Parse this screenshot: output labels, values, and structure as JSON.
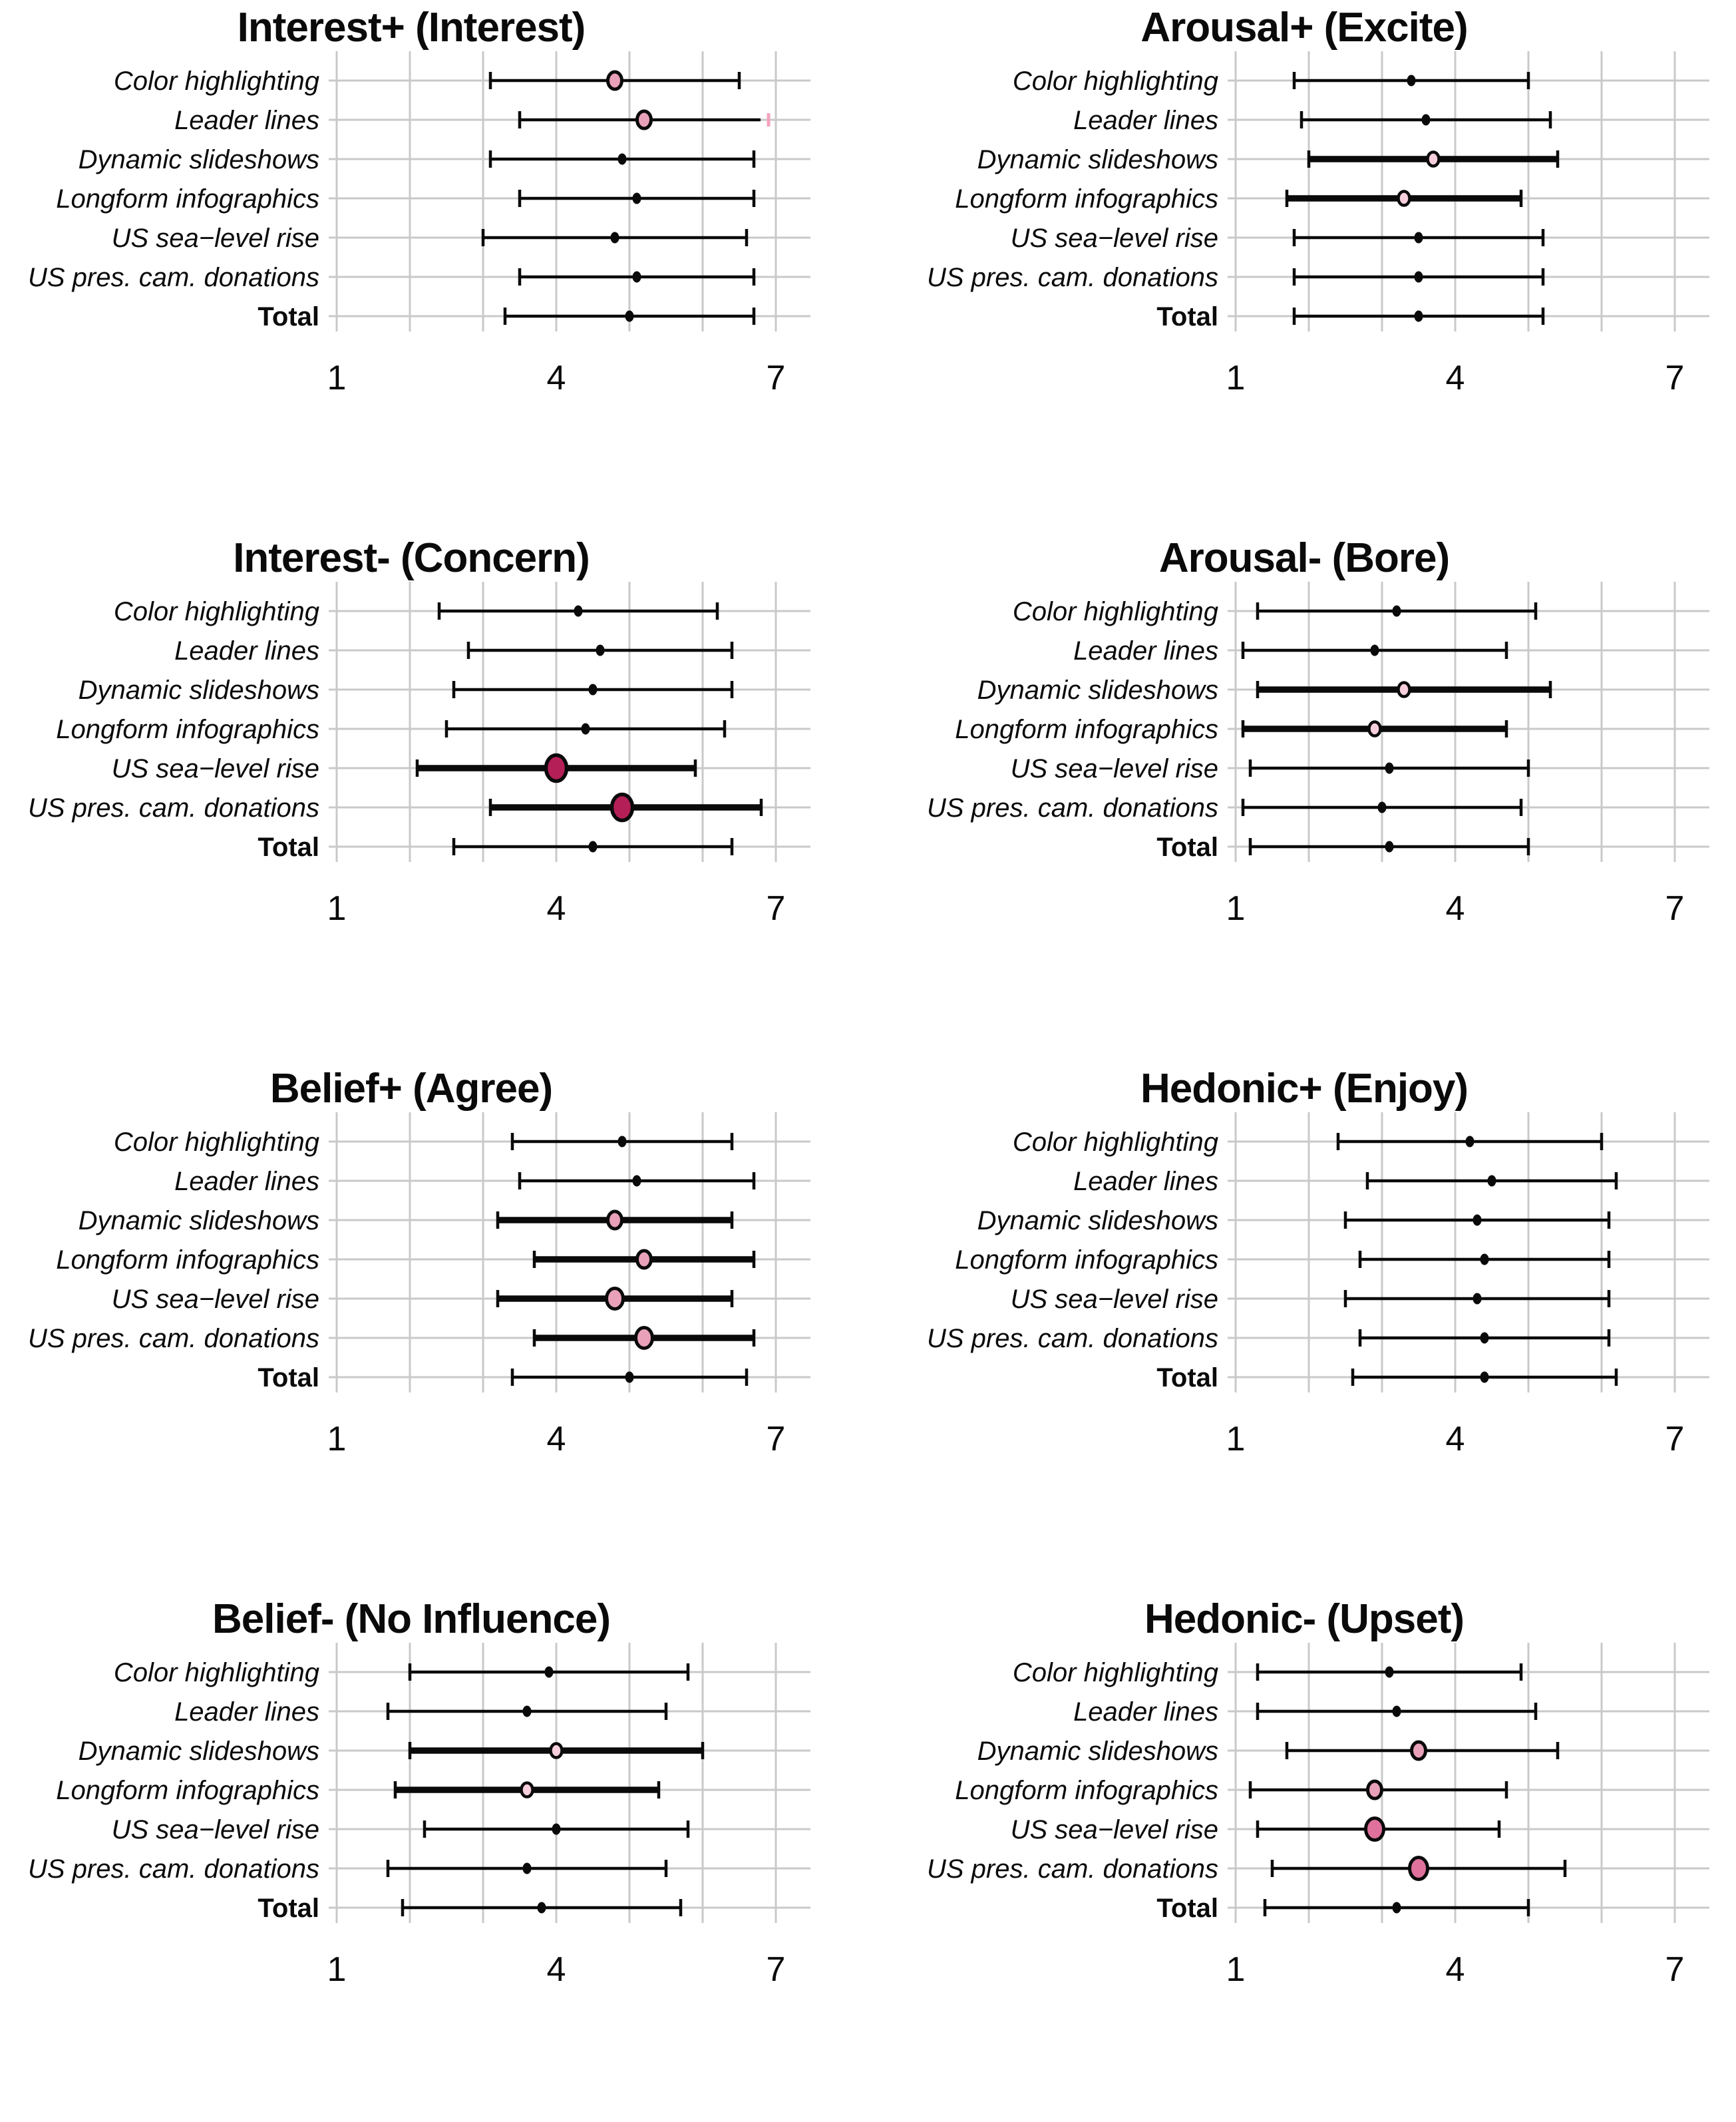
{
  "figure_title": "",
  "style": {
    "background": "#ffffff",
    "grid_color": "#c9c9c9",
    "line_color": "#0a0a0a",
    "text_color": "#0a0a0a",
    "thin_width": 4.5,
    "thick_width": 9.5,
    "cap_half_height": 13,
    "pink_cap_color": "#f2a3bb",
    "dot_styles": {
      "black": {
        "rx": 6.5,
        "ry": 8.5,
        "fill": "#0a0a0a",
        "stroke": "none",
        "sw": 0
      },
      "pink_light": {
        "rx": 8.5,
        "ry": 10.5,
        "fill": "#f7cedb",
        "stroke": "#0a0a0a",
        "sw": 4.5
      },
      "pink_med": {
        "rx": 10.5,
        "ry": 13,
        "fill": "#e9a1ba",
        "stroke": "#0a0a0a",
        "sw": 5
      },
      "pink_med_lg": {
        "rx": 12.5,
        "ry": 15.5,
        "fill": "#e9a1ba",
        "stroke": "#0a0a0a",
        "sw": 5
      },
      "pink_dark": {
        "rx": 13.5,
        "ry": 16.5,
        "fill": "#e0719d",
        "stroke": "#0a0a0a",
        "sw": 5
      },
      "crimson": {
        "rx": 15.5,
        "ry": 19.5,
        "fill": "#b51f58",
        "stroke": "#0a0a0a",
        "sw": 5.5
      }
    }
  },
  "chart_data": [
    {
      "id": "interest-pos",
      "title": "Interest+ (Interest)",
      "type": "dot-interval",
      "xlim": [
        1,
        7
      ],
      "xticks": [
        1,
        4,
        7
      ],
      "grid": true,
      "rows": [
        {
          "label": "Color highlighting",
          "value": 4.8,
          "lo": 3.1,
          "hi": 6.5,
          "dot": "pink_med",
          "thick": false
        },
        {
          "label": "Leader lines",
          "value": 5.2,
          "lo": 3.5,
          "hi": 6.9,
          "dot": "pink_med",
          "thick": false,
          "hi_cap": "pink"
        },
        {
          "label": "Dynamic slideshows",
          "value": 4.9,
          "lo": 3.1,
          "hi": 6.7,
          "dot": "black",
          "thick": false
        },
        {
          "label": "Longform infographics",
          "value": 5.1,
          "lo": 3.5,
          "hi": 6.7,
          "dot": "black",
          "thick": false
        },
        {
          "label": "US sea−level rise",
          "value": 4.8,
          "lo": 3.0,
          "hi": 6.6,
          "dot": "black",
          "thick": false
        },
        {
          "label": "US pres. cam. donations",
          "value": 5.1,
          "lo": 3.5,
          "hi": 6.7,
          "dot": "black",
          "thick": false
        },
        {
          "label": "Total",
          "value": 5.0,
          "lo": 3.3,
          "hi": 6.7,
          "dot": "black",
          "thick": false,
          "bold": true
        }
      ]
    },
    {
      "id": "arousal-pos",
      "title": "Arousal+ (Excite)",
      "type": "dot-interval",
      "xlim": [
        1,
        7
      ],
      "xticks": [
        1,
        4,
        7
      ],
      "grid": true,
      "rows": [
        {
          "label": "Color highlighting",
          "value": 3.4,
          "lo": 1.8,
          "hi": 5.0,
          "dot": "black",
          "thick": false
        },
        {
          "label": "Leader lines",
          "value": 3.6,
          "lo": 1.9,
          "hi": 5.3,
          "dot": "black",
          "thick": false
        },
        {
          "label": "Dynamic slideshows",
          "value": 3.7,
          "lo": 2.0,
          "hi": 5.4,
          "dot": "pink_light",
          "thick": true
        },
        {
          "label": "Longform infographics",
          "value": 3.3,
          "lo": 1.7,
          "hi": 4.9,
          "dot": "pink_light",
          "thick": true
        },
        {
          "label": "US sea−level rise",
          "value": 3.5,
          "lo": 1.8,
          "hi": 5.2,
          "dot": "black",
          "thick": false
        },
        {
          "label": "US pres. cam. donations",
          "value": 3.5,
          "lo": 1.8,
          "hi": 5.2,
          "dot": "black",
          "thick": false
        },
        {
          "label": "Total",
          "value": 3.5,
          "lo": 1.8,
          "hi": 5.2,
          "dot": "black",
          "thick": false,
          "bold": true
        }
      ]
    },
    {
      "id": "interest-neg",
      "title": "Interest- (Concern)",
      "type": "dot-interval",
      "xlim": [
        1,
        7
      ],
      "xticks": [
        1,
        4,
        7
      ],
      "grid": true,
      "rows": [
        {
          "label": "Color highlighting",
          "value": 4.3,
          "lo": 2.4,
          "hi": 6.2,
          "dot": "black",
          "thick": false
        },
        {
          "label": "Leader lines",
          "value": 4.6,
          "lo": 2.8,
          "hi": 6.4,
          "dot": "black",
          "thick": false
        },
        {
          "label": "Dynamic slideshows",
          "value": 4.5,
          "lo": 2.6,
          "hi": 6.4,
          "dot": "black",
          "thick": false
        },
        {
          "label": "Longform infographics",
          "value": 4.4,
          "lo": 2.5,
          "hi": 6.3,
          "dot": "black",
          "thick": false
        },
        {
          "label": "US sea−level rise",
          "value": 4.0,
          "lo": 2.1,
          "hi": 5.9,
          "dot": "crimson",
          "thick": true
        },
        {
          "label": "US pres. cam. donations",
          "value": 4.9,
          "lo": 3.1,
          "hi": 6.8,
          "dot": "crimson",
          "thick": true
        },
        {
          "label": "Total",
          "value": 4.5,
          "lo": 2.6,
          "hi": 6.4,
          "dot": "black",
          "thick": false,
          "bold": true
        }
      ]
    },
    {
      "id": "arousal-neg",
      "title": "Arousal- (Bore)",
      "type": "dot-interval",
      "xlim": [
        1,
        7
      ],
      "xticks": [
        1,
        4,
        7
      ],
      "grid": true,
      "rows": [
        {
          "label": "Color highlighting",
          "value": 3.2,
          "lo": 1.3,
          "hi": 5.1,
          "dot": "black",
          "thick": false
        },
        {
          "label": "Leader lines",
          "value": 2.9,
          "lo": 1.1,
          "hi": 4.7,
          "dot": "black",
          "thick": false
        },
        {
          "label": "Dynamic slideshows",
          "value": 3.3,
          "lo": 1.3,
          "hi": 5.3,
          "dot": "pink_light",
          "thick": true
        },
        {
          "label": "Longform infographics",
          "value": 2.9,
          "lo": 1.1,
          "hi": 4.7,
          "dot": "pink_light",
          "thick": true
        },
        {
          "label": "US sea−level rise",
          "value": 3.1,
          "lo": 1.2,
          "hi": 5.0,
          "dot": "black",
          "thick": false
        },
        {
          "label": "US pres. cam. donations",
          "value": 3.0,
          "lo": 1.1,
          "hi": 4.9,
          "dot": "black",
          "thick": false
        },
        {
          "label": "Total",
          "value": 3.1,
          "lo": 1.2,
          "hi": 5.0,
          "dot": "black",
          "thick": false,
          "bold": true
        }
      ]
    },
    {
      "id": "belief-pos",
      "title": "Belief+ (Agree)",
      "type": "dot-interval",
      "xlim": [
        1,
        7
      ],
      "xticks": [
        1,
        4,
        7
      ],
      "grid": true,
      "rows": [
        {
          "label": "Color highlighting",
          "value": 4.9,
          "lo": 3.4,
          "hi": 6.4,
          "dot": "black",
          "thick": false
        },
        {
          "label": "Leader lines",
          "value": 5.1,
          "lo": 3.5,
          "hi": 6.7,
          "dot": "black",
          "thick": false
        },
        {
          "label": "Dynamic slideshows",
          "value": 4.8,
          "lo": 3.2,
          "hi": 6.4,
          "dot": "pink_med",
          "thick": true
        },
        {
          "label": "Longform infographics",
          "value": 5.2,
          "lo": 3.7,
          "hi": 6.7,
          "dot": "pink_med",
          "thick": true
        },
        {
          "label": "US sea−level rise",
          "value": 4.8,
          "lo": 3.2,
          "hi": 6.4,
          "dot": "pink_med_lg",
          "thick": true
        },
        {
          "label": "US pres. cam. donations",
          "value": 5.2,
          "lo": 3.7,
          "hi": 6.7,
          "dot": "pink_med_lg",
          "thick": true
        },
        {
          "label": "Total",
          "value": 5.0,
          "lo": 3.4,
          "hi": 6.6,
          "dot": "black",
          "thick": false,
          "bold": true
        }
      ]
    },
    {
      "id": "hedonic-pos",
      "title": "Hedonic+ (Enjoy)",
      "type": "dot-interval",
      "xlim": [
        1,
        7
      ],
      "xticks": [
        1,
        4,
        7
      ],
      "grid": true,
      "rows": [
        {
          "label": "Color highlighting",
          "value": 4.2,
          "lo": 2.4,
          "hi": 6.0,
          "dot": "black",
          "thick": false
        },
        {
          "label": "Leader lines",
          "value": 4.5,
          "lo": 2.8,
          "hi": 6.2,
          "dot": "black",
          "thick": false
        },
        {
          "label": "Dynamic slideshows",
          "value": 4.3,
          "lo": 2.5,
          "hi": 6.1,
          "dot": "black",
          "thick": false
        },
        {
          "label": "Longform infographics",
          "value": 4.4,
          "lo": 2.7,
          "hi": 6.1,
          "dot": "black",
          "thick": false
        },
        {
          "label": "US sea−level rise",
          "value": 4.3,
          "lo": 2.5,
          "hi": 6.1,
          "dot": "black",
          "thick": false
        },
        {
          "label": "US pres. cam. donations",
          "value": 4.4,
          "lo": 2.7,
          "hi": 6.1,
          "dot": "black",
          "thick": false
        },
        {
          "label": "Total",
          "value": 4.4,
          "lo": 2.6,
          "hi": 6.2,
          "dot": "black",
          "thick": false,
          "bold": true
        }
      ]
    },
    {
      "id": "belief-neg",
      "title": "Belief- (No Influence)",
      "type": "dot-interval",
      "xlim": [
        1,
        7
      ],
      "xticks": [
        1,
        4,
        7
      ],
      "grid": true,
      "rows": [
        {
          "label": "Color highlighting",
          "value": 3.9,
          "lo": 2.0,
          "hi": 5.8,
          "dot": "black",
          "thick": false
        },
        {
          "label": "Leader lines",
          "value": 3.6,
          "lo": 1.7,
          "hi": 5.5,
          "dot": "black",
          "thick": false
        },
        {
          "label": "Dynamic slideshows",
          "value": 4.0,
          "lo": 2.0,
          "hi": 6.0,
          "dot": "pink_light",
          "thick": true
        },
        {
          "label": "Longform infographics",
          "value": 3.6,
          "lo": 1.8,
          "hi": 5.4,
          "dot": "pink_light",
          "thick": true
        },
        {
          "label": "US sea−level rise",
          "value": 4.0,
          "lo": 2.2,
          "hi": 5.8,
          "dot": "black",
          "thick": false
        },
        {
          "label": "US pres. cam. donations",
          "value": 3.6,
          "lo": 1.7,
          "hi": 5.5,
          "dot": "black",
          "thick": false
        },
        {
          "label": "Total",
          "value": 3.8,
          "lo": 1.9,
          "hi": 5.7,
          "dot": "black",
          "thick": false,
          "bold": true
        }
      ]
    },
    {
      "id": "hedonic-neg",
      "title": "Hedonic- (Upset)",
      "type": "dot-interval",
      "xlim": [
        1,
        7
      ],
      "xticks": [
        1,
        4,
        7
      ],
      "grid": true,
      "rows": [
        {
          "label": "Color highlighting",
          "value": 3.1,
          "lo": 1.3,
          "hi": 4.9,
          "dot": "black",
          "thick": false
        },
        {
          "label": "Leader lines",
          "value": 3.2,
          "lo": 1.3,
          "hi": 5.1,
          "dot": "black",
          "thick": false
        },
        {
          "label": "Dynamic slideshows",
          "value": 3.5,
          "lo": 1.7,
          "hi": 5.4,
          "dot": "pink_med",
          "thick": false
        },
        {
          "label": "Longform infographics",
          "value": 2.9,
          "lo": 1.2,
          "hi": 4.7,
          "dot": "pink_med",
          "thick": false
        },
        {
          "label": "US sea−level rise",
          "value": 2.9,
          "lo": 1.3,
          "hi": 4.6,
          "dot": "pink_dark",
          "thick": false
        },
        {
          "label": "US pres. cam. donations",
          "value": 3.5,
          "lo": 1.5,
          "hi": 5.5,
          "dot": "pink_dark",
          "thick": false
        },
        {
          "label": "Total",
          "value": 3.2,
          "lo": 1.4,
          "hi": 5.0,
          "dot": "black",
          "thick": false,
          "bold": true
        }
      ]
    }
  ]
}
